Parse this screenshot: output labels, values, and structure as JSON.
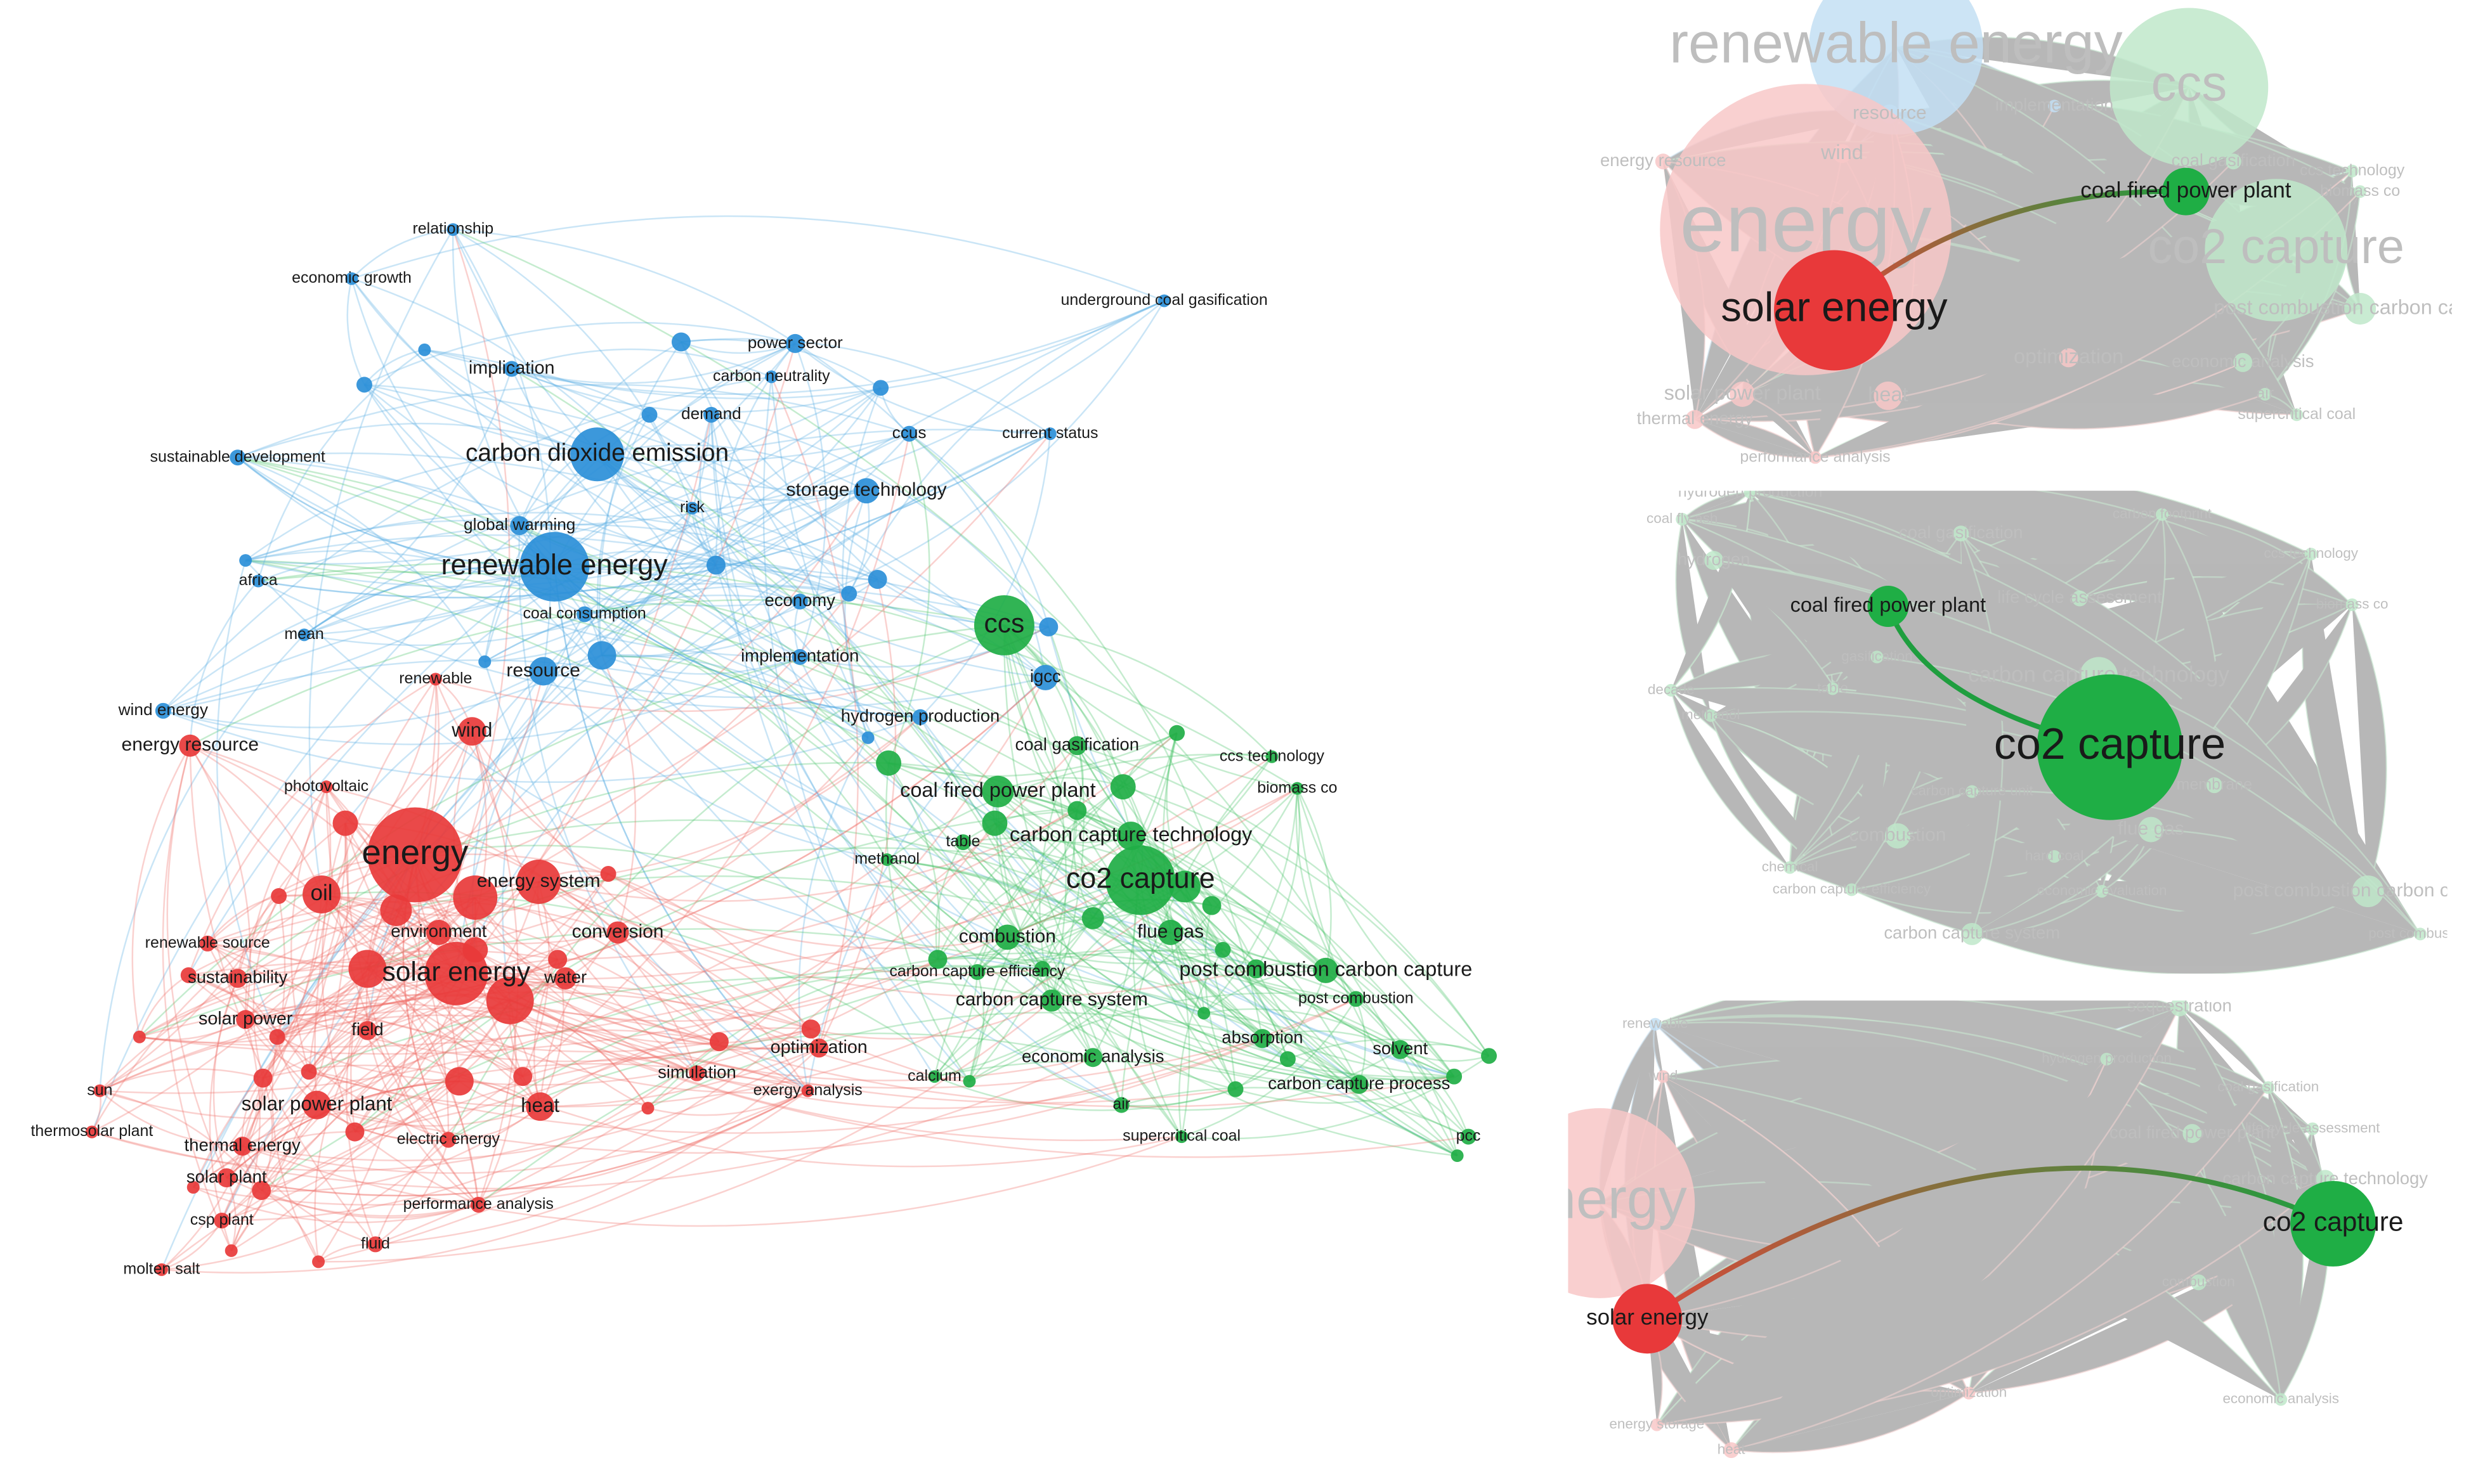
{
  "network": {
    "nodes": [
      "relationship",
      "economic growth",
      "implication",
      "power sector",
      "carbon neutrality",
      "demand",
      "ccus",
      "current status",
      "underground coal gasification",
      "sustainable development",
      "carbon dioxide emission",
      "storage technology",
      "global warming",
      "risk",
      "renewable energy",
      "africa",
      "coal consumption",
      "economy",
      "mean",
      "resource",
      "implementation",
      "igcc",
      "wind energy",
      "hydrogen production",
      "ccs",
      "coal gasification",
      "ccs technology",
      "biomass co",
      "coal fired power plant",
      "carbon capture technology",
      "co2 capture",
      "table",
      "methanol",
      "combustion",
      "flue gas",
      "carbon capture efficiency",
      "post combustion carbon capture",
      "carbon capture system",
      "post combustion",
      "absorption",
      "solvent",
      "economic analysis",
      "calcium",
      "carbon capture process",
      "air",
      "supercritical coal",
      "pcc",
      "renewable",
      "wind",
      "energy resource",
      "photovoltaic",
      "energy",
      "energy system",
      "oil",
      "environment",
      "conversion",
      "renewable source",
      "solar energy",
      "sustainability",
      "water",
      "solar power",
      "field",
      "optimization",
      "simulation",
      "sun",
      "exergy analysis",
      "solar power plant",
      "heat",
      "thermosolar plant",
      "thermal energy",
      "electric energy",
      "solar plant",
      "csp plant",
      "performance analysis",
      "fluid",
      "molten salt"
    ]
  },
  "panels": [
    {
      "nodes": [
        "renewable energy",
        "ccs",
        "resource",
        "implementation",
        "wind",
        "energy resource",
        "energy",
        "coal gasification",
        "ccs technology",
        "biomass co",
        "coal fired power plant",
        "co2 capture",
        "solar energy",
        "post combustion carbon capture",
        "optimization",
        "economic analysis",
        "air",
        "supercritical coal",
        "solar power plant",
        "heat",
        "thermal energy",
        "performance analysis"
      ]
    },
    {
      "nodes": [
        "hydrogen production",
        "coal fly ash",
        "hydrogen",
        "coal gasification",
        "carbon footprint",
        "ccs technology",
        "biomass co",
        "life cycle assessment",
        "coal fired power plant",
        "gasification",
        "carbon capture technology",
        "table",
        "decade",
        "methanol",
        "co2 capture",
        "carbon capture unit",
        "membrane",
        "combustion",
        "flue gas",
        "hard coal",
        "chemical",
        "carbon capture efficiency",
        "economic evaluation",
        "post combustion carbon capture",
        "carbon capture system",
        "post combustion"
      ]
    },
    {
      "nodes": [
        "renewable",
        "sequestration",
        "wind",
        "hydrogen production",
        "coal gasification",
        "coal fired power plant",
        "life cycle assessment",
        "carbon capture technology",
        "energy",
        "co2 capture",
        "combustion",
        "solar energy",
        "optimization",
        "economic analysis",
        "energy storage",
        "heat"
      ]
    }
  ]
}
